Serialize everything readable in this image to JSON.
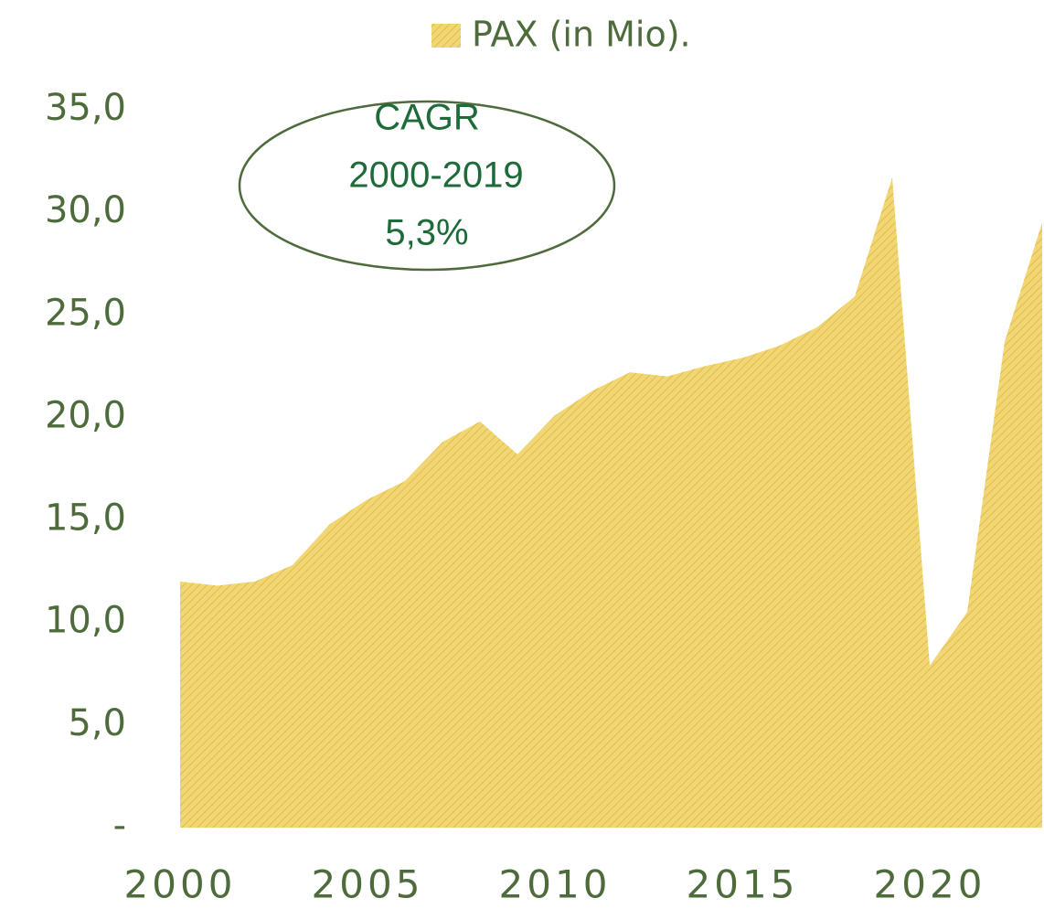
{
  "chart_data": {
    "type": "area",
    "x": [
      2000,
      2001,
      2002,
      2003,
      2004,
      2005,
      2006,
      2007,
      2008,
      2009,
      2010,
      2011,
      2012,
      2013,
      2014,
      2015,
      2016,
      2017,
      2018,
      2019,
      2020,
      2021,
      2022,
      2023
    ],
    "series": [
      {
        "name": "PAX (in Mio).",
        "color": "#f1d676",
        "values": [
          12.0,
          11.8,
          12.0,
          12.8,
          14.8,
          16.0,
          16.9,
          18.8,
          19.8,
          18.2,
          20.1,
          21.3,
          22.2,
          22.0,
          22.5,
          22.9,
          23.5,
          24.4,
          25.9,
          31.7,
          7.9,
          10.5,
          23.7,
          29.5
        ]
      }
    ],
    "xlim": [
      2000,
      2023
    ],
    "xticks": [
      2000,
      2005,
      2010,
      2015,
      2020
    ],
    "ylim": [
      0,
      35
    ],
    "yticks": [
      {
        "value": 0,
        "label": "-"
      },
      {
        "value": 5,
        "label": "5,0"
      },
      {
        "value": 10,
        "label": "10,0"
      },
      {
        "value": 15,
        "label": "15,0"
      },
      {
        "value": 20,
        "label": "20,0"
      },
      {
        "value": 25,
        "label": "25,0"
      },
      {
        "value": 30,
        "label": "30,0"
      },
      {
        "value": 35,
        "label": "35,0"
      }
    ],
    "legend": "top",
    "annotation": [
      "CAGR",
      "2000-2019",
      "5,3%"
    ]
  }
}
